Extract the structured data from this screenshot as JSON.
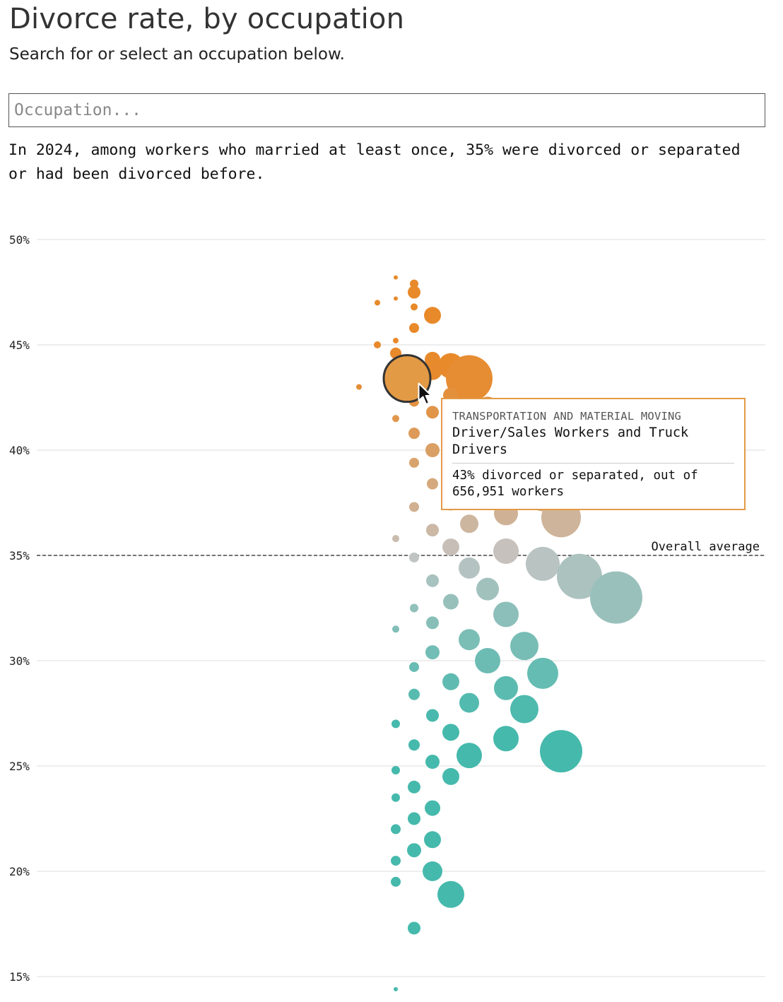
{
  "header": {
    "title": "Divorce rate, by occupation",
    "subtitle": "Search for or select an occupation below."
  },
  "search": {
    "placeholder": "Occupation...",
    "value": ""
  },
  "summary": "In 2024, among workers who married at least once, 35% were divorced or separated or had been divorced before.",
  "tooltip": {
    "category": "TRANSPORTATION AND MATERIAL MOVING",
    "occupation": "Driver/Sales Workers and Truck Drivers",
    "stat": "43% divorced or separated, out of 656,951 workers"
  },
  "chart_data": {
    "type": "scatter",
    "subtype": "beeswarm",
    "y_unit": "% divorced or separated",
    "ylim": [
      15,
      50
    ],
    "y_ticks": [
      50,
      45,
      40,
      35,
      30,
      25,
      20,
      15
    ],
    "y_tick_labels": [
      "50%",
      "45%",
      "40%",
      "35%",
      "30%",
      "25%",
      "20%",
      "15%"
    ],
    "grid": true,
    "reference_line": {
      "value": 35,
      "label": "Overall average"
    },
    "color_scale": {
      "high": "#e8892a",
      "mid": "#c4c4c4",
      "low": "#45b9ac"
    },
    "highlighted": {
      "rate": 43.4,
      "workers": 656951
    },
    "bubbles": [
      [
        48.2,
        0,
        3
      ],
      [
        47.9,
        1,
        6
      ],
      [
        47.5,
        1,
        9
      ],
      [
        47.2,
        0,
        3
      ],
      [
        47.0,
        -1,
        4
      ],
      [
        46.8,
        1,
        5
      ],
      [
        46.4,
        2,
        12
      ],
      [
        45.8,
        1,
        7
      ],
      [
        45.2,
        0,
        4
      ],
      [
        45.0,
        -1,
        5
      ],
      [
        44.6,
        0,
        8
      ],
      [
        44.3,
        2,
        11
      ],
      [
        44.0,
        3,
        18
      ],
      [
        43.8,
        2,
        14
      ],
      [
        43.6,
        1,
        9
      ],
      [
        43.4,
        4,
        33
      ],
      [
        43.0,
        -2,
        4
      ],
      [
        42.8,
        0,
        6
      ],
      [
        42.6,
        3,
        11
      ],
      [
        42.3,
        1,
        7
      ],
      [
        42.0,
        5,
        16
      ],
      [
        41.8,
        2,
        9
      ],
      [
        41.5,
        0,
        5
      ],
      [
        41.0,
        4,
        19
      ],
      [
        40.8,
        1,
        8
      ],
      [
        40.5,
        3,
        13
      ],
      [
        40.2,
        6,
        22
      ],
      [
        40.0,
        2,
        10
      ],
      [
        39.7,
        5,
        17
      ],
      [
        39.4,
        1,
        7
      ],
      [
        39.0,
        4,
        15
      ],
      [
        38.7,
        7,
        24
      ],
      [
        38.4,
        2,
        8
      ],
      [
        38.0,
        5,
        14
      ],
      [
        37.8,
        8,
        21
      ],
      [
        37.5,
        3,
        11
      ],
      [
        37.3,
        1,
        7
      ],
      [
        37.0,
        6,
        17
      ],
      [
        36.8,
        9,
        28
      ],
      [
        36.5,
        4,
        13
      ],
      [
        36.2,
        2,
        9
      ],
      [
        35.8,
        0,
        5
      ],
      [
        35.4,
        3,
        12
      ],
      [
        35.2,
        6,
        18
      ],
      [
        34.9,
        1,
        7
      ],
      [
        34.6,
        8,
        24
      ],
      [
        34.4,
        4,
        15
      ],
      [
        34.0,
        10,
        32
      ],
      [
        33.8,
        2,
        9
      ],
      [
        33.4,
        5,
        16
      ],
      [
        33.0,
        12,
        37
      ],
      [
        32.8,
        3,
        11
      ],
      [
        32.5,
        1,
        6
      ],
      [
        32.2,
        6,
        18
      ],
      [
        31.8,
        2,
        9
      ],
      [
        31.5,
        0,
        5
      ],
      [
        31.0,
        4,
        15
      ],
      [
        30.7,
        7,
        20
      ],
      [
        30.4,
        2,
        10
      ],
      [
        30.0,
        5,
        18
      ],
      [
        29.7,
        1,
        7
      ],
      [
        29.4,
        8,
        22
      ],
      [
        29.0,
        3,
        12
      ],
      [
        28.7,
        6,
        17
      ],
      [
        28.4,
        1,
        8
      ],
      [
        28.0,
        4,
        14
      ],
      [
        27.7,
        7,
        20
      ],
      [
        27.4,
        2,
        9
      ],
      [
        27.0,
        0,
        6
      ],
      [
        26.6,
        3,
        12
      ],
      [
        26.3,
        6,
        18
      ],
      [
        26.0,
        1,
        8
      ],
      [
        25.7,
        9,
        30
      ],
      [
        25.5,
        4,
        18
      ],
      [
        25.2,
        2,
        10
      ],
      [
        24.8,
        0,
        6
      ],
      [
        24.5,
        3,
        12
      ],
      [
        24.0,
        1,
        9
      ],
      [
        23.5,
        0,
        6
      ],
      [
        23.0,
        2,
        11
      ],
      [
        22.5,
        1,
        9
      ],
      [
        22.0,
        0,
        7
      ],
      [
        21.5,
        2,
        12
      ],
      [
        21.0,
        1,
        10
      ],
      [
        20.5,
        0,
        7
      ],
      [
        20.0,
        2,
        14
      ],
      [
        19.5,
        0,
        7
      ],
      [
        18.9,
        3,
        19
      ],
      [
        17.3,
        1,
        9
      ],
      [
        14.4,
        0,
        3
      ]
    ]
  }
}
